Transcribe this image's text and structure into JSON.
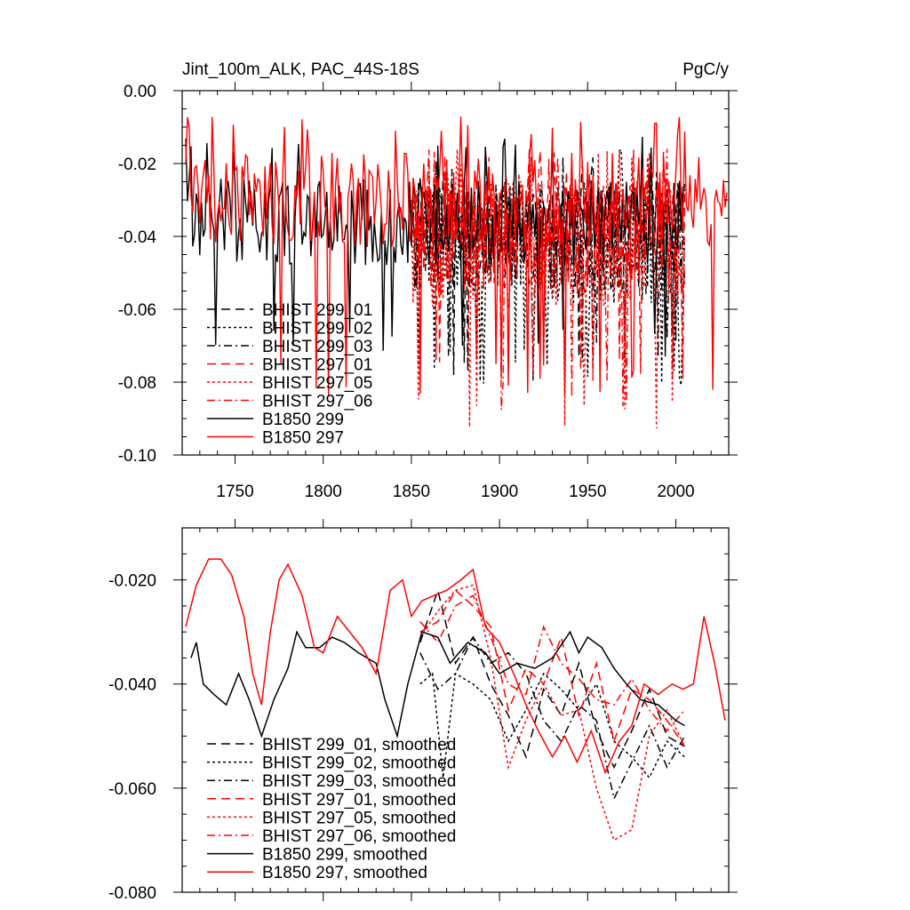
{
  "chart_data": [
    {
      "type": "line",
      "title": "Jint_100m_ALK, PAC_44S-18S",
      "units": "PgC/y",
      "xlim": [
        1720,
        2030
      ],
      "ylim": [
        -0.1,
        0.0
      ],
      "xticks": [
        1750,
        1800,
        1850,
        1900,
        1950,
        2000
      ],
      "xtick_labels": [
        "1750",
        "1800",
        "1850",
        "1900",
        "1950",
        "2000"
      ],
      "yticks": [
        0.0,
        -0.02,
        -0.04,
        -0.06,
        -0.08,
        -0.1
      ],
      "ytick_labels": [
        "0.00",
        "-0.02",
        "-0.04",
        "-0.06",
        "-0.08",
        "-0.10"
      ],
      "legend_location": "bottom-left",
      "series": [
        {
          "name": "BHIST 299_01",
          "color": "#000000",
          "dash": "long-dash",
          "x_range": [
            1850,
            2005
          ],
          "mean": -0.04,
          "amplitude": 0.015,
          "min": -0.08,
          "max": -0.018
        },
        {
          "name": "BHIST 299_02",
          "color": "#000000",
          "dash": "dotted",
          "x_range": [
            1850,
            2005
          ],
          "mean": -0.042,
          "amplitude": 0.017,
          "min": -0.081,
          "max": -0.014
        },
        {
          "name": "BHIST 299_03",
          "color": "#000000",
          "dash": "dash-dot",
          "x_range": [
            1850,
            2005
          ],
          "mean": -0.04,
          "amplitude": 0.015,
          "min": -0.075,
          "max": -0.018
        },
        {
          "name": "BHIST 297_01",
          "color": "#ff0000",
          "dash": "long-dash",
          "x_range": [
            1850,
            2005
          ],
          "mean": -0.038,
          "amplitude": 0.016,
          "min": -0.08,
          "max": -0.015
        },
        {
          "name": "BHIST 297_05",
          "color": "#ff0000",
          "dash": "dotted",
          "x_range": [
            1850,
            2005
          ],
          "mean": -0.042,
          "amplitude": 0.018,
          "min": -0.094,
          "max": -0.016
        },
        {
          "name": "BHIST 297_06",
          "color": "#ff0000",
          "dash": "dash-dot",
          "x_range": [
            1850,
            2005
          ],
          "mean": -0.04,
          "amplitude": 0.016,
          "min": -0.088,
          "max": -0.015
        },
        {
          "name": "B1850 299",
          "color": "#000000",
          "dash": "solid",
          "x_range": [
            1722,
            2005
          ],
          "mean": -0.036,
          "amplitude": 0.012,
          "min": -0.073,
          "max": -0.012
        },
        {
          "name": "B1850 297",
          "color": "#ff0000",
          "dash": "solid",
          "x_range": [
            1722,
            2029
          ],
          "mean": -0.03,
          "amplitude": 0.013,
          "min": -0.085,
          "max": -0.007
        }
      ]
    },
    {
      "type": "line",
      "title": "",
      "xlim": [
        1720,
        2030
      ],
      "ylim": [
        -0.08,
        -0.01
      ],
      "xticks": [
        1750,
        1800,
        1850,
        1900,
        1950,
        2000
      ],
      "yticks": [
        -0.02,
        -0.04,
        -0.06,
        -0.08
      ],
      "ytick_labels": [
        "-0.020",
        "-0.040",
        "-0.060",
        "-0.080"
      ],
      "legend_location": "bottom-left",
      "series": [
        {
          "name": "BHIST 299_01, smoothed",
          "color": "#000000",
          "dash": "long-dash",
          "x": [
            1855,
            1865,
            1875,
            1885,
            1895,
            1905,
            1915,
            1925,
            1935,
            1945,
            1955,
            1965,
            1975,
            1985,
            1995,
            2005
          ],
          "y": [
            -0.032,
            -0.022,
            -0.036,
            -0.031,
            -0.04,
            -0.046,
            -0.054,
            -0.041,
            -0.046,
            -0.036,
            -0.049,
            -0.056,
            -0.049,
            -0.041,
            -0.05,
            -0.052
          ]
        },
        {
          "name": "BHIST 299_02, smoothed",
          "color": "#000000",
          "dash": "dotted",
          "x": [
            1855,
            1862,
            1868,
            1875,
            1885,
            1895,
            1905,
            1915,
            1925,
            1935,
            1945,
            1955,
            1965,
            1975,
            1985,
            1995,
            2005
          ],
          "y": [
            -0.04,
            -0.038,
            -0.058,
            -0.038,
            -0.04,
            -0.043,
            -0.051,
            -0.045,
            -0.038,
            -0.041,
            -0.045,
            -0.04,
            -0.051,
            -0.054,
            -0.058,
            -0.051,
            -0.054
          ]
        },
        {
          "name": "BHIST 299_03, smoothed",
          "color": "#000000",
          "dash": "dash-dot",
          "x": [
            1855,
            1865,
            1875,
            1885,
            1895,
            1905,
            1915,
            1925,
            1935,
            1945,
            1955,
            1965,
            1975,
            1985,
            1995,
            2005
          ],
          "y": [
            -0.034,
            -0.041,
            -0.038,
            -0.031,
            -0.036,
            -0.034,
            -0.038,
            -0.047,
            -0.051,
            -0.044,
            -0.047,
            -0.062,
            -0.055,
            -0.048,
            -0.056,
            -0.05
          ]
        },
        {
          "name": "BHIST 297_01, smoothed",
          "color": "#ff0000",
          "dash": "long-dash",
          "x": [
            1855,
            1865,
            1875,
            1885,
            1895,
            1905,
            1915,
            1925,
            1935,
            1945,
            1955,
            1965,
            1975,
            1985,
            1995,
            2005
          ],
          "y": [
            -0.03,
            -0.028,
            -0.022,
            -0.025,
            -0.029,
            -0.045,
            -0.037,
            -0.04,
            -0.031,
            -0.046,
            -0.036,
            -0.051,
            -0.041,
            -0.043,
            -0.047,
            -0.052
          ]
        },
        {
          "name": "BHIST 297_05, smoothed",
          "color": "#ff0000",
          "dash": "dotted",
          "x": [
            1855,
            1865,
            1875,
            1885,
            1895,
            1905,
            1915,
            1925,
            1935,
            1945,
            1955,
            1965,
            1975,
            1985,
            1995,
            2005
          ],
          "y": [
            -0.031,
            -0.026,
            -0.022,
            -0.021,
            -0.035,
            -0.056,
            -0.047,
            -0.04,
            -0.046,
            -0.045,
            -0.06,
            -0.07,
            -0.068,
            -0.05,
            -0.045,
            -0.052
          ]
        },
        {
          "name": "BHIST 297_06, smoothed",
          "color": "#ff0000",
          "dash": "dash-dot",
          "x": [
            1855,
            1865,
            1875,
            1885,
            1895,
            1905,
            1915,
            1925,
            1935,
            1945,
            1955,
            1965,
            1975,
            1985,
            1995,
            2005
          ],
          "y": [
            -0.028,
            -0.032,
            -0.025,
            -0.023,
            -0.031,
            -0.04,
            -0.042,
            -0.029,
            -0.036,
            -0.039,
            -0.043,
            -0.044,
            -0.039,
            -0.045,
            -0.049,
            -0.045
          ]
        },
        {
          "name": "B1850 299, smoothed",
          "color": "#000000",
          "dash": "solid",
          "x": [
            1725,
            1728,
            1732,
            1738,
            1745,
            1752,
            1758,
            1765,
            1772,
            1780,
            1785,
            1790,
            1798,
            1805,
            1812,
            1820,
            1830,
            1835,
            1842,
            1848,
            1856,
            1865,
            1872,
            1882,
            1892,
            1900,
            1910,
            1920,
            1930,
            1940,
            1945,
            1950,
            1958,
            1965,
            1972,
            1980,
            1990,
            2000,
            2005
          ],
          "y": [
            -0.035,
            -0.032,
            -0.04,
            -0.042,
            -0.044,
            -0.038,
            -0.043,
            -0.05,
            -0.043,
            -0.037,
            -0.03,
            -0.033,
            -0.033,
            -0.031,
            -0.032,
            -0.034,
            -0.036,
            -0.043,
            -0.05,
            -0.04,
            -0.03,
            -0.031,
            -0.036,
            -0.032,
            -0.034,
            -0.038,
            -0.036,
            -0.037,
            -0.035,
            -0.03,
            -0.034,
            -0.031,
            -0.033,
            -0.037,
            -0.04,
            -0.043,
            -0.044,
            -0.047,
            -0.048
          ]
        },
        {
          "name": "B1850 297, smoothed",
          "color": "#ff0000",
          "dash": "solid",
          "x": [
            1722,
            1728,
            1735,
            1742,
            1748,
            1755,
            1760,
            1765,
            1770,
            1775,
            1780,
            1788,
            1795,
            1800,
            1808,
            1815,
            1822,
            1830,
            1838,
            1845,
            1850,
            1856,
            1863,
            1870,
            1878,
            1885,
            1892,
            1900,
            1908,
            1915,
            1922,
            1930,
            1937,
            1944,
            1952,
            1960,
            1968,
            1975,
            1982,
            1990,
            1998,
            2004,
            2010,
            2016,
            2022,
            2028
          ],
          "y": [
            -0.029,
            -0.021,
            -0.016,
            -0.016,
            -0.019,
            -0.027,
            -0.038,
            -0.044,
            -0.03,
            -0.02,
            -0.017,
            -0.023,
            -0.033,
            -0.034,
            -0.027,
            -0.03,
            -0.033,
            -0.038,
            -0.022,
            -0.02,
            -0.027,
            -0.024,
            -0.023,
            -0.022,
            -0.02,
            -0.018,
            -0.029,
            -0.032,
            -0.038,
            -0.044,
            -0.049,
            -0.054,
            -0.05,
            -0.055,
            -0.049,
            -0.057,
            -0.051,
            -0.048,
            -0.04,
            -0.042,
            -0.04,
            -0.041,
            -0.04,
            -0.027,
            -0.036,
            -0.047
          ]
        }
      ]
    }
  ],
  "style": {
    "black": "#000000",
    "red": "#ff0000",
    "background": "#ffffff"
  }
}
